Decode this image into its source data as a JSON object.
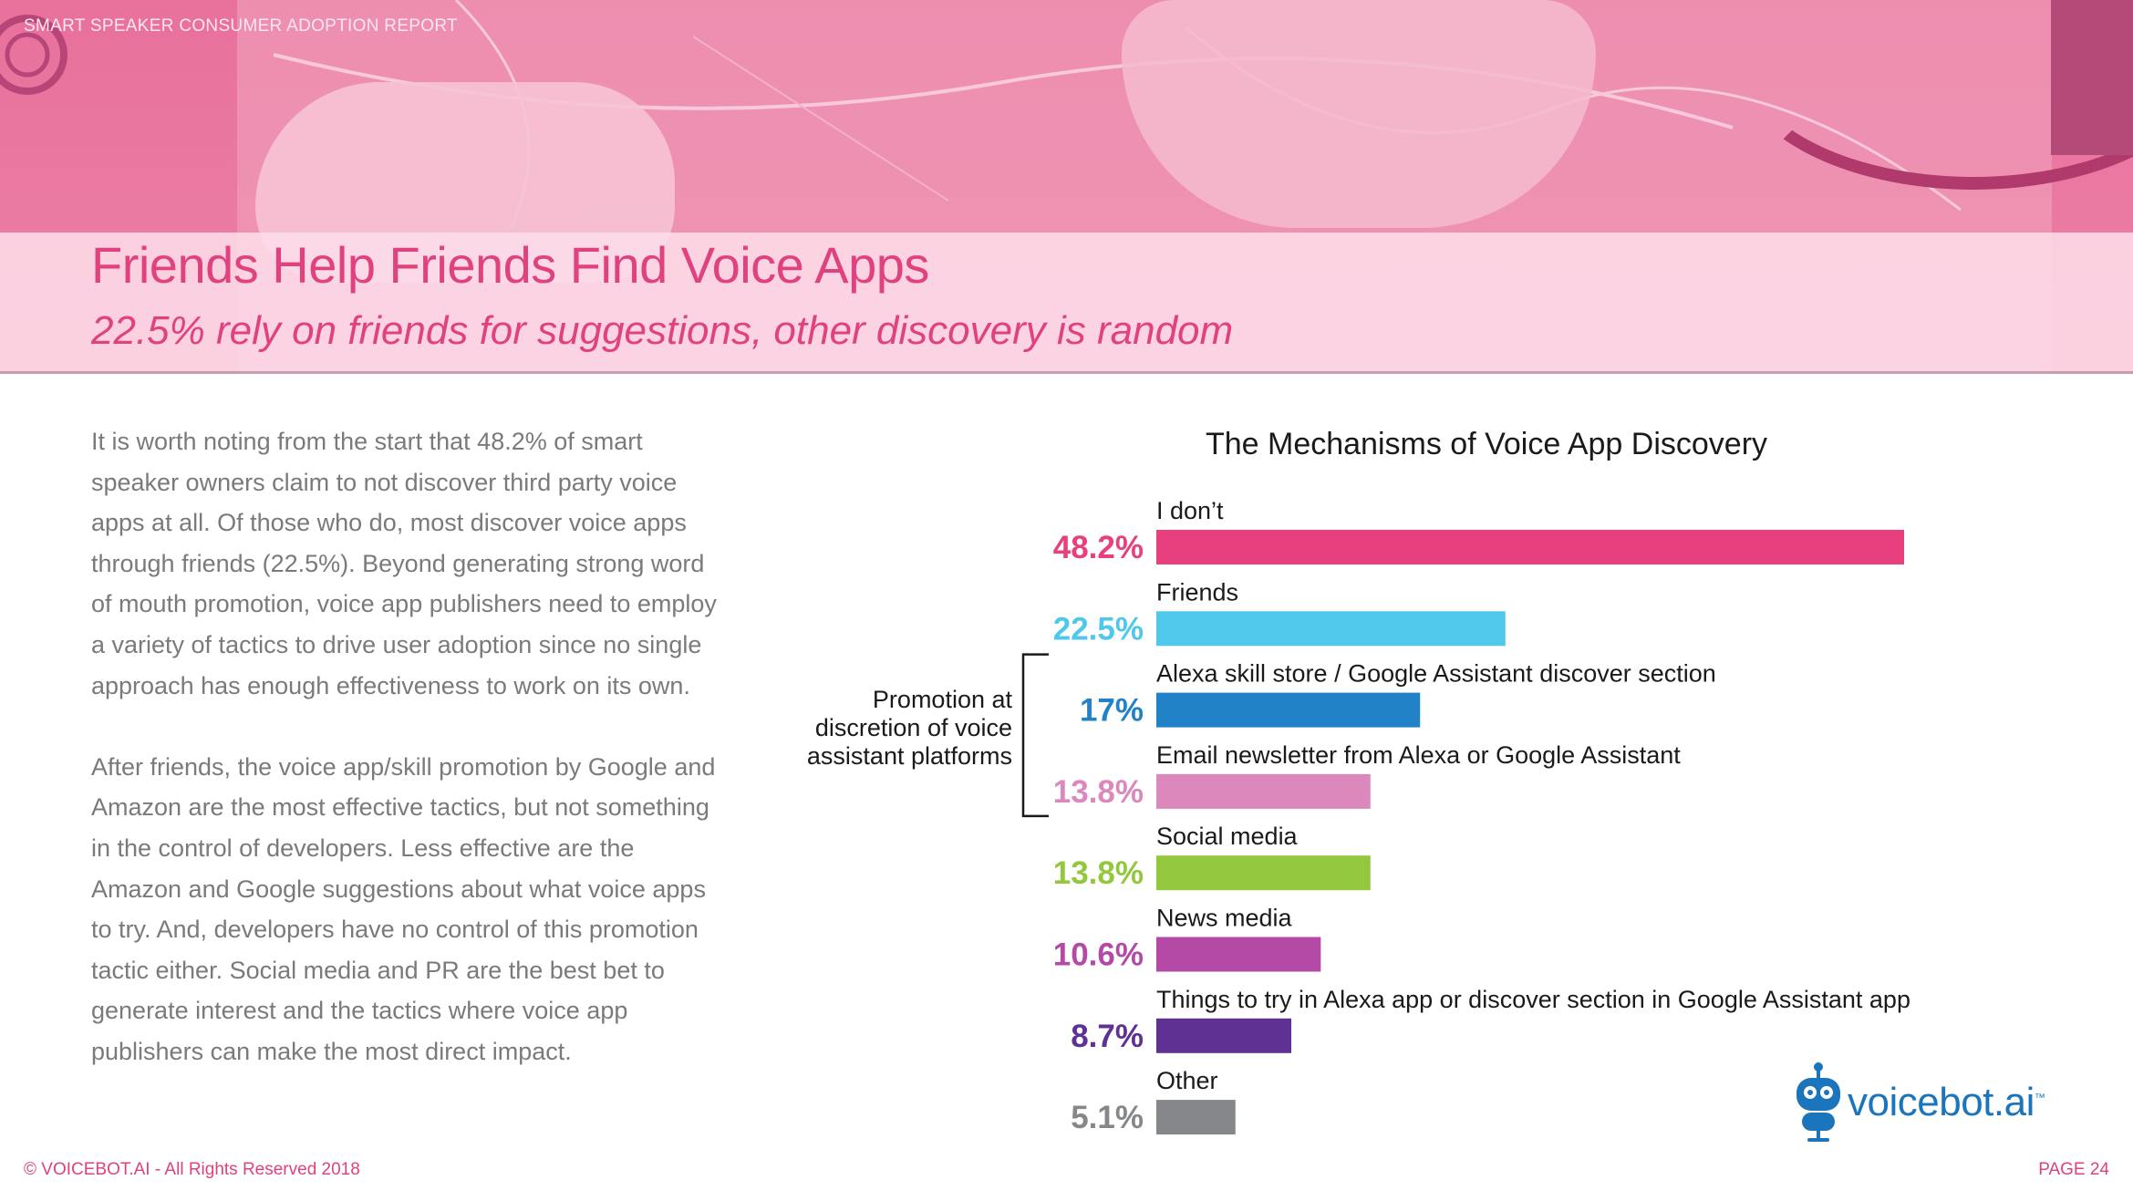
{
  "header": {
    "report_label": "SMART SPEAKER CONSUMER ADOPTION REPORT",
    "title": "Friends Help Friends Find Voice Apps",
    "subtitle": "22.5% rely on friends for suggestions, other discovery is random"
  },
  "body": {
    "paragraph_1": "It is worth noting from the start that 48.2% of smart speaker owners claim to not discover third party voice apps at all. Of those who do, most discover voice apps through friends (22.5%). Beyond generating strong word of mouth promotion, voice app publishers need to employ a variety of tactics to drive user adoption since no single approach has enough effectiveness to work on its own.",
    "paragraph_2": "After friends, the voice app/skill promotion by Google and Amazon are the most effective tactics, but not something in the control of developers. Less effective are the Amazon and Google suggestions about what voice apps to try. And, developers have no control of this promotion tactic either. Social media and PR are the best bet to generate interest and the tactics where voice app publishers can make the most direct impact."
  },
  "chart_data": {
    "type": "bar",
    "orientation": "horizontal",
    "title": "The Mechanisms of Voice App Discovery",
    "unit": "%",
    "xlim": [
      0,
      50
    ],
    "categories": [
      "I don’t",
      "Friends",
      "Alexa skill store / Google Assistant discover section",
      "Email newsletter from Alexa or Google Assistant",
      "Social media",
      "News media",
      "Things to try in Alexa app or discover section in Google Assistant app",
      "Other"
    ],
    "values": [
      48.2,
      22.5,
      17,
      13.8,
      13.8,
      10.6,
      8.7,
      5.1
    ],
    "value_labels": [
      "48.2%",
      "22.5%",
      "17%",
      "13.8%",
      "13.8%",
      "10.6%",
      "8.7%",
      "5.1%"
    ],
    "colors": [
      "#e8407e",
      "#4fc8ec",
      "#2182c8",
      "#dd88bd",
      "#93c83e",
      "#b54aa6",
      "#5e3192",
      "#85878a"
    ],
    "annotation": {
      "text": "Promotion at discretion of voice assistant platforms",
      "spans_categories": [
        "Alexa skill store / Google Assistant discover section",
        "Email newsletter from Alexa or Google Assistant"
      ]
    }
  },
  "logo": {
    "text": "voicebot.ai",
    "tm": "™"
  },
  "footer": {
    "copyright": "© VOICEBOT.AI - All Rights Reserved 2018",
    "page": "PAGE 24"
  }
}
